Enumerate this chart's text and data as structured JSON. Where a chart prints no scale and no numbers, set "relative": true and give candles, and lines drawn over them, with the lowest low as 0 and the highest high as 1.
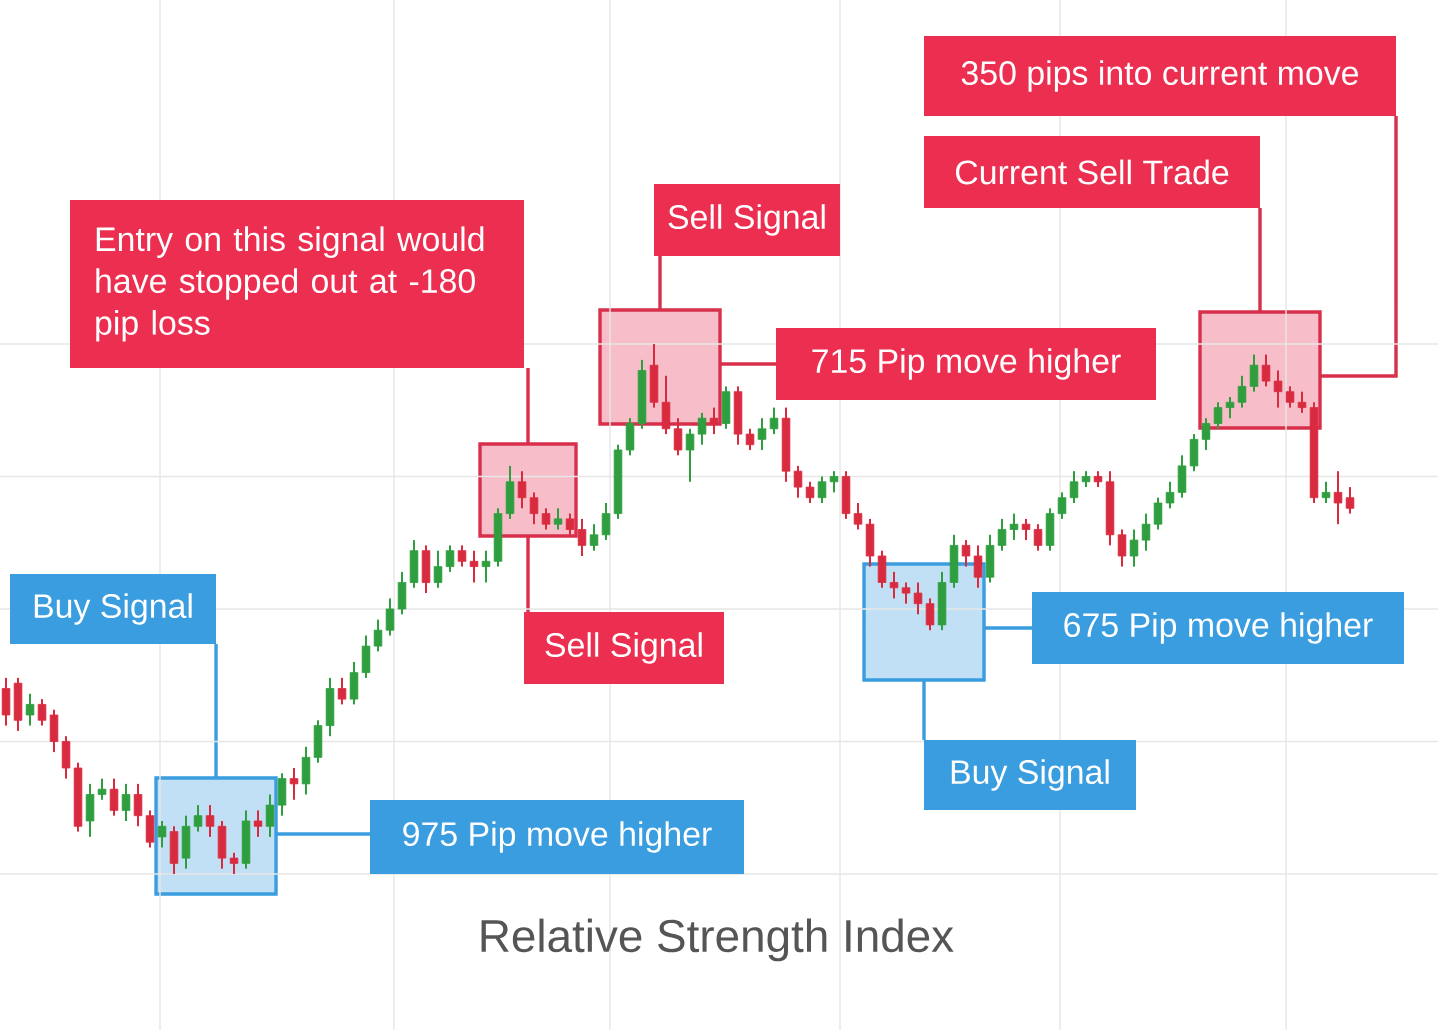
{
  "chart_data": {
    "type": "candlestick",
    "relative": true,
    "grid": true,
    "categories": [
      null,
      null,
      null,
      null,
      null,
      null,
      null,
      null,
      null,
      null,
      null,
      null,
      null,
      null,
      null,
      null,
      null,
      null,
      null,
      null,
      null,
      null,
      null,
      null,
      null,
      null,
      null,
      null,
      null,
      null,
      null,
      null,
      null,
      null,
      null,
      null,
      null,
      null,
      null,
      null,
      null,
      null,
      null,
      null,
      null,
      null,
      null,
      null,
      null,
      null,
      null,
      null,
      null,
      null,
      null,
      null,
      null,
      null,
      null,
      null,
      null,
      null,
      null,
      null,
      null,
      null,
      null,
      null,
      null,
      null,
      null,
      null,
      null,
      null,
      null,
      null,
      null,
      null,
      null,
      null,
      null,
      null,
      null,
      null,
      null,
      null,
      null,
      null,
      null,
      null,
      null,
      null,
      null,
      null,
      null,
      null,
      null,
      null,
      null,
      null,
      null,
      null,
      null,
      null,
      null,
      null,
      null,
      null,
      null,
      null,
      null,
      null,
      null
    ],
    "ohlc": [
      [
        0.35,
        0.37,
        0.28,
        0.3
      ],
      [
        0.36,
        0.37,
        0.27,
        0.29
      ],
      [
        0.3,
        0.34,
        0.28,
        0.32
      ],
      [
        0.32,
        0.33,
        0.28,
        0.29
      ],
      [
        0.3,
        0.31,
        0.23,
        0.25
      ],
      [
        0.25,
        0.26,
        0.18,
        0.2
      ],
      [
        0.2,
        0.21,
        0.08,
        0.09
      ],
      [
        0.1,
        0.17,
        0.07,
        0.15
      ],
      [
        0.15,
        0.18,
        0.14,
        0.16
      ],
      [
        0.16,
        0.18,
        0.11,
        0.12
      ],
      [
        0.12,
        0.17,
        0.1,
        0.15
      ],
      [
        0.15,
        0.17,
        0.09,
        0.11
      ],
      [
        0.11,
        0.12,
        0.05,
        0.06
      ],
      [
        0.07,
        0.1,
        0.05,
        0.09
      ],
      [
        0.08,
        0.09,
        0.0,
        0.02
      ],
      [
        0.03,
        0.11,
        0.01,
        0.09
      ],
      [
        0.09,
        0.13,
        0.08,
        0.11
      ],
      [
        0.11,
        0.13,
        0.07,
        0.09
      ],
      [
        0.09,
        0.1,
        0.01,
        0.03
      ],
      [
        0.03,
        0.04,
        0.0,
        0.02
      ],
      [
        0.02,
        0.12,
        0.01,
        0.1
      ],
      [
        0.1,
        0.12,
        0.07,
        0.09
      ],
      [
        0.09,
        0.15,
        0.07,
        0.13
      ],
      [
        0.13,
        0.19,
        0.11,
        0.18
      ],
      [
        0.18,
        0.2,
        0.14,
        0.17
      ],
      [
        0.17,
        0.24,
        0.15,
        0.22
      ],
      [
        0.22,
        0.29,
        0.21,
        0.28
      ],
      [
        0.28,
        0.37,
        0.26,
        0.35
      ],
      [
        0.35,
        0.37,
        0.32,
        0.33
      ],
      [
        0.33,
        0.4,
        0.32,
        0.38
      ],
      [
        0.38,
        0.45,
        0.37,
        0.43
      ],
      [
        0.43,
        0.48,
        0.42,
        0.46
      ],
      [
        0.46,
        0.52,
        0.45,
        0.5
      ],
      [
        0.5,
        0.57,
        0.49,
        0.55
      ],
      [
        0.55,
        0.63,
        0.54,
        0.61
      ],
      [
        0.61,
        0.62,
        0.53,
        0.55
      ],
      [
        0.55,
        0.61,
        0.54,
        0.58
      ],
      [
        0.58,
        0.62,
        0.57,
        0.61
      ],
      [
        0.61,
        0.62,
        0.58,
        0.59
      ],
      [
        0.59,
        0.61,
        0.55,
        0.58
      ],
      [
        0.58,
        0.61,
        0.55,
        0.59
      ],
      [
        0.59,
        0.69,
        0.58,
        0.68
      ],
      [
        0.68,
        0.77,
        0.67,
        0.74
      ],
      [
        0.74,
        0.76,
        0.69,
        0.71
      ],
      [
        0.71,
        0.72,
        0.66,
        0.68
      ],
      [
        0.68,
        0.69,
        0.65,
        0.66
      ],
      [
        0.66,
        0.69,
        0.65,
        0.67
      ],
      [
        0.67,
        0.68,
        0.64,
        0.65
      ],
      [
        0.65,
        0.67,
        0.6,
        0.62
      ],
      [
        0.62,
        0.66,
        0.61,
        0.64
      ],
      [
        0.64,
        0.7,
        0.63,
        0.68
      ],
      [
        0.68,
        0.81,
        0.67,
        0.8
      ],
      [
        0.8,
        0.86,
        0.79,
        0.85
      ],
      [
        0.85,
        0.97,
        0.84,
        0.95
      ],
      [
        0.96,
        1.0,
        0.88,
        0.89
      ],
      [
        0.89,
        0.94,
        0.83,
        0.84
      ],
      [
        0.84,
        0.86,
        0.79,
        0.8
      ],
      [
        0.8,
        0.84,
        0.74,
        0.83
      ],
      [
        0.83,
        0.87,
        0.81,
        0.86
      ],
      [
        0.86,
        0.88,
        0.83,
        0.85
      ],
      [
        0.85,
        0.92,
        0.84,
        0.91
      ],
      [
        0.91,
        0.92,
        0.81,
        0.83
      ],
      [
        0.83,
        0.84,
        0.8,
        0.81
      ],
      [
        0.82,
        0.86,
        0.8,
        0.84
      ],
      [
        0.84,
        0.88,
        0.83,
        0.86
      ],
      [
        0.86,
        0.88,
        0.74,
        0.76
      ],
      [
        0.76,
        0.77,
        0.71,
        0.73
      ],
      [
        0.73,
        0.74,
        0.7,
        0.71
      ],
      [
        0.71,
        0.75,
        0.7,
        0.74
      ],
      [
        0.74,
        0.76,
        0.72,
        0.75
      ],
      [
        0.75,
        0.76,
        0.67,
        0.68
      ],
      [
        0.68,
        0.7,
        0.65,
        0.66
      ],
      [
        0.66,
        0.67,
        0.58,
        0.6
      ],
      [
        0.6,
        0.61,
        0.54,
        0.55
      ],
      [
        0.55,
        0.57,
        0.52,
        0.54
      ],
      [
        0.54,
        0.55,
        0.51,
        0.53
      ],
      [
        0.53,
        0.55,
        0.49,
        0.51
      ],
      [
        0.51,
        0.52,
        0.46,
        0.47
      ],
      [
        0.47,
        0.57,
        0.46,
        0.55
      ],
      [
        0.55,
        0.64,
        0.54,
        0.62
      ],
      [
        0.62,
        0.63,
        0.58,
        0.6
      ],
      [
        0.6,
        0.62,
        0.54,
        0.56
      ],
      [
        0.56,
        0.64,
        0.55,
        0.62
      ],
      [
        0.62,
        0.67,
        0.61,
        0.65
      ],
      [
        0.65,
        0.68,
        0.63,
        0.66
      ],
      [
        0.66,
        0.67,
        0.63,
        0.65
      ],
      [
        0.65,
        0.66,
        0.61,
        0.62
      ],
      [
        0.62,
        0.69,
        0.61,
        0.68
      ],
      [
        0.68,
        0.72,
        0.67,
        0.71
      ],
      [
        0.71,
        0.76,
        0.7,
        0.74
      ],
      [
        0.74,
        0.76,
        0.73,
        0.75
      ],
      [
        0.75,
        0.76,
        0.73,
        0.74
      ],
      [
        0.74,
        0.76,
        0.62,
        0.64
      ],
      [
        0.64,
        0.65,
        0.58,
        0.6
      ],
      [
        0.6,
        0.65,
        0.58,
        0.63
      ],
      [
        0.63,
        0.68,
        0.61,
        0.66
      ],
      [
        0.66,
        0.71,
        0.65,
        0.7
      ],
      [
        0.7,
        0.74,
        0.69,
        0.72
      ],
      [
        0.72,
        0.79,
        0.71,
        0.77
      ],
      [
        0.77,
        0.83,
        0.76,
        0.82
      ],
      [
        0.82,
        0.86,
        0.8,
        0.85
      ],
      [
        0.85,
        0.89,
        0.84,
        0.88
      ],
      [
        0.88,
        0.9,
        0.86,
        0.89
      ],
      [
        0.89,
        0.94,
        0.88,
        0.92
      ],
      [
        0.92,
        0.98,
        0.91,
        0.96
      ],
      [
        0.96,
        0.98,
        0.92,
        0.93
      ],
      [
        0.93,
        0.95,
        0.88,
        0.91
      ],
      [
        0.91,
        0.92,
        0.88,
        0.89
      ],
      [
        0.89,
        0.91,
        0.87,
        0.88
      ],
      [
        0.88,
        0.89,
        0.7,
        0.71
      ],
      [
        0.71,
        0.74,
        0.7,
        0.72
      ],
      [
        0.72,
        0.76,
        0.66,
        0.7
      ],
      [
        0.71,
        0.73,
        0.68,
        0.69
      ]
    ],
    "colors": [
      "#d92b3f",
      "#d92b3f",
      "#2e9e3e",
      "#d92b3f",
      "#d92b3f",
      "#d92b3f",
      "#d92b3f",
      "#2e9e3e",
      "#2e9e3e",
      "#d92b3f",
      "#2e9e3e",
      "#d92b3f",
      "#d92b3f",
      "#2e9e3e",
      "#d92b3f",
      "#2e9e3e",
      "#2e9e3e",
      "#d92b3f",
      "#d92b3f",
      "#d92b3f",
      "#2e9e3e",
      "#d92b3f",
      "#2e9e3e",
      "#2e9e3e",
      "#d92b3f",
      "#2e9e3e",
      "#2e9e3e",
      "#2e9e3e",
      "#d92b3f",
      "#2e9e3e",
      "#2e9e3e",
      "#2e9e3e",
      "#2e9e3e",
      "#2e9e3e",
      "#2e9e3e",
      "#d92b3f",
      "#2e9e3e",
      "#2e9e3e",
      "#d92b3f",
      "#d92b3f",
      "#2e9e3e",
      "#2e9e3e",
      "#2e9e3e",
      "#d92b3f",
      "#d92b3f",
      "#d92b3f",
      "#2e9e3e",
      "#d92b3f",
      "#d92b3f",
      "#2e9e3e",
      "#2e9e3e",
      "#2e9e3e",
      "#2e9e3e",
      "#2e9e3e",
      "#d92b3f",
      "#d92b3f",
      "#d92b3f",
      "#2e9e3e",
      "#2e9e3e",
      "#d92b3f",
      "#2e9e3e",
      "#d92b3f",
      "#d92b3f",
      "#2e9e3e",
      "#2e9e3e",
      "#d92b3f",
      "#d92b3f",
      "#d92b3f",
      "#2e9e3e",
      "#2e9e3e",
      "#d92b3f",
      "#d92b3f",
      "#d92b3f",
      "#d92b3f",
      "#d92b3f",
      "#d92b3f",
      "#d92b3f",
      "#d92b3f",
      "#2e9e3e",
      "#2e9e3e",
      "#d92b3f",
      "#d92b3f",
      "#2e9e3e",
      "#2e9e3e",
      "#2e9e3e",
      "#d92b3f",
      "#d92b3f",
      "#2e9e3e",
      "#2e9e3e",
      "#2e9e3e",
      "#2e9e3e",
      "#d92b3f",
      "#d92b3f",
      "#d92b3f",
      "#2e9e3e",
      "#2e9e3e",
      "#2e9e3e",
      "#2e9e3e",
      "#2e9e3e",
      "#2e9e3e",
      "#2e9e3e",
      "#2e9e3e",
      "#2e9e3e",
      "#2e9e3e",
      "#2e9e3e",
      "#d92b3f",
      "#d92b3f",
      "#d92b3f",
      "#d92b3f",
      "#d92b3f",
      "#2e9e3e",
      "#d92b3f",
      "#d92b3f"
    ],
    "annotations": [
      "350 pips into current move",
      "Current Sell Trade",
      "Sell Signal",
      "Entry on this signal would have stopped out at -180 pip loss",
      "715 Pip move higher",
      "Buy Signal",
      "Sell Signal",
      "675 Pip move higher",
      "Buy Signal",
      "975 Pip move higher",
      "Relative Strength Index"
    ]
  }
}
